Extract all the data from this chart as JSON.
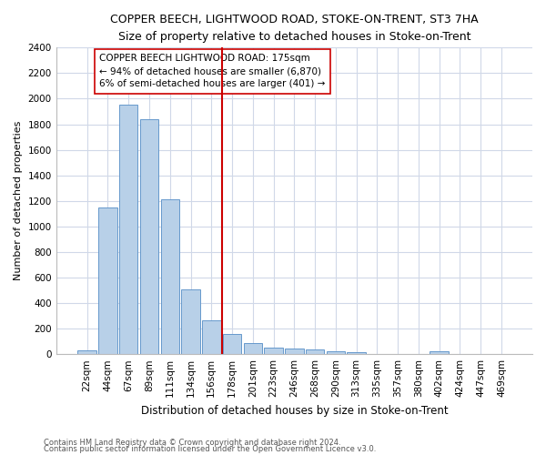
{
  "title": "COPPER BEECH, LIGHTWOOD ROAD, STOKE-ON-TRENT, ST3 7HA",
  "subtitle": "Size of property relative to detached houses in Stoke-on-Trent",
  "xlabel": "Distribution of detached houses by size in Stoke-on-Trent",
  "ylabel": "Number of detached properties",
  "bin_labels": [
    "22sqm",
    "44sqm",
    "67sqm",
    "89sqm",
    "111sqm",
    "134sqm",
    "156sqm",
    "178sqm",
    "201sqm",
    "223sqm",
    "246sqm",
    "268sqm",
    "290sqm",
    "313sqm",
    "335sqm",
    "357sqm",
    "380sqm",
    "402sqm",
    "424sqm",
    "447sqm",
    "469sqm"
  ],
  "bar_heights": [
    30,
    1150,
    1950,
    1840,
    1210,
    510,
    265,
    160,
    85,
    50,
    45,
    40,
    20,
    15,
    0,
    0,
    0,
    20,
    0,
    0,
    0
  ],
  "bar_color": "#b8d0e8",
  "bar_edge_color": "#6699cc",
  "vline_color": "#cc0000",
  "annotation_text": "COPPER BEECH LIGHTWOOD ROAD: 175sqm\n← 94% of detached houses are smaller (6,870)\n6% of semi-detached houses are larger (401) →",
  "annotation_box_color": "#ffffff",
  "annotation_box_edge": "#cc0000",
  "ylim": [
    0,
    2400
  ],
  "yticks": [
    0,
    200,
    400,
    600,
    800,
    1000,
    1200,
    1400,
    1600,
    1800,
    2000,
    2200,
    2400
  ],
  "footer1": "Contains HM Land Registry data © Crown copyright and database right 2024.",
  "footer2": "Contains public sector information licensed under the Open Government Licence v3.0.",
  "background_color": "#ffffff",
  "plot_bg_color": "#ffffff",
  "grid_color": "#d0d8e8",
  "title_fontsize": 9,
  "subtitle_fontsize": 8.5,
  "xlabel_fontsize": 8.5,
  "ylabel_fontsize": 8,
  "tick_fontsize": 7.5,
  "annotation_fontsize": 7.5,
  "footer_fontsize": 6
}
